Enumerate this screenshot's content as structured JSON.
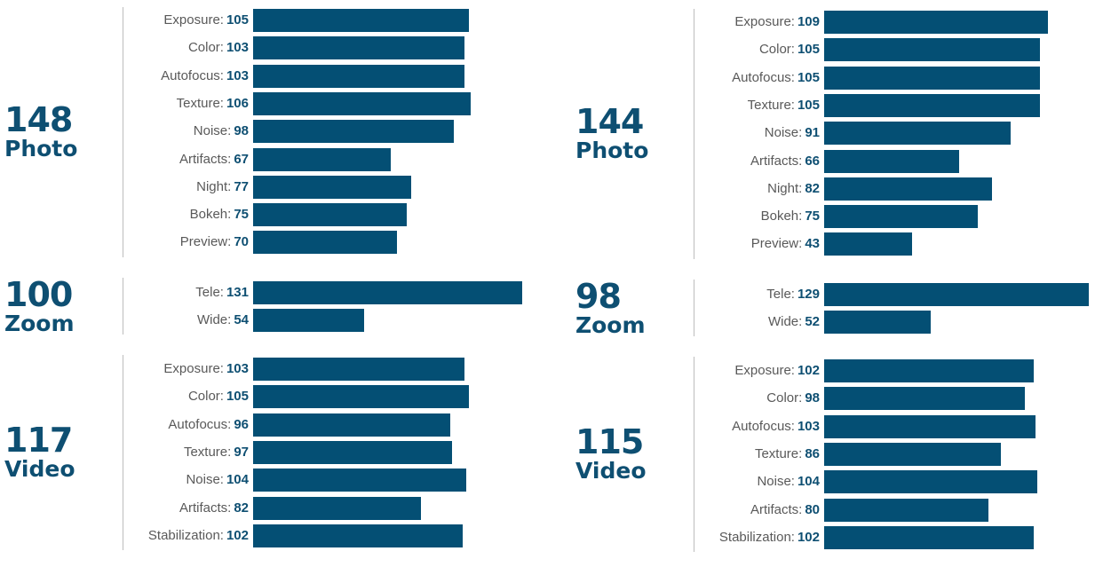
{
  "chart_data": {
    "type": "bar",
    "orientation": "horizontal",
    "panels": [
      {
        "groups": [
          {
            "score": "148",
            "category": "Photo",
            "labels": [
              "Exposure:",
              "Color:",
              "Autofocus:",
              "Texture:",
              "Noise:",
              "Artifacts:",
              "Night:",
              "Bokeh:",
              "Preview:"
            ],
            "values": [
              105,
              103,
              103,
              106,
              98,
              67,
              77,
              75,
              70
            ]
          },
          {
            "score": "100",
            "category": "Zoom",
            "labels": [
              "Tele:",
              "Wide:"
            ],
            "values": [
              131,
              54
            ]
          },
          {
            "score": "117",
            "category": "Video",
            "labels": [
              "Exposure:",
              "Color:",
              "Autofocus:",
              "Texture:",
              "Noise:",
              "Artifacts:",
              "Stabilization:"
            ],
            "values": [
              103,
              105,
              96,
              97,
              104,
              82,
              102
            ]
          }
        ]
      },
      {
        "groups": [
          {
            "score": "144",
            "category": "Photo",
            "labels": [
              "Exposure:",
              "Color:",
              "Autofocus:",
              "Texture:",
              "Noise:",
              "Artifacts:",
              "Night:",
              "Bokeh:",
              "Preview:"
            ],
            "values": [
              109,
              105,
              105,
              105,
              91,
              66,
              82,
              75,
              43
            ]
          },
          {
            "score": "98",
            "category": "Zoom",
            "labels": [
              "Tele:",
              "Wide:"
            ],
            "values": [
              129,
              52
            ]
          },
          {
            "score": "115",
            "category": "Video",
            "labels": [
              "Exposure:",
              "Color:",
              "Autofocus:",
              "Texture:",
              "Noise:",
              "Artifacts:",
              "Stabilization:"
            ],
            "values": [
              102,
              98,
              103,
              86,
              104,
              80,
              102
            ]
          }
        ]
      }
    ],
    "bar_color": "#044f74",
    "value_color": "#0e4f72",
    "label_color": "#595959"
  }
}
